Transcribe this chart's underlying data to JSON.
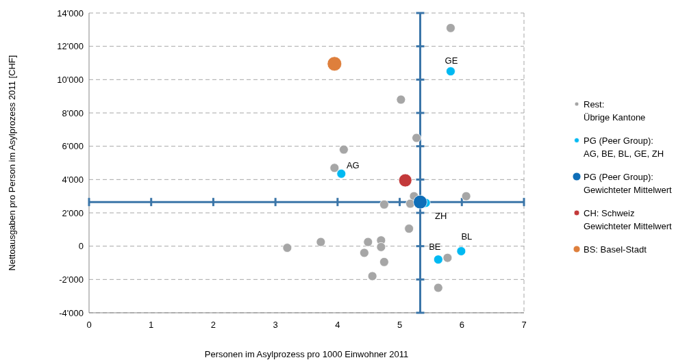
{
  "chart_data": {
    "type": "scatter",
    "xlabel": "Personen im Asylprozess pro 1000 Einwohner 2011",
    "ylabel": "Nettoausgaben pro Person im Asylprozess 2011 [CHF]",
    "xlim": [
      0,
      7
    ],
    "xticks": [
      0,
      1,
      2,
      3,
      4,
      5,
      6,
      7
    ],
    "ylim": [
      -4000,
      14000
    ],
    "yticks": [
      {
        "value": -4000,
        "label": "-4'000"
      },
      {
        "value": -2000,
        "label": "-2'000"
      },
      {
        "value": 0,
        "label": "0"
      },
      {
        "value": 2000,
        "label": "2'000"
      },
      {
        "value": 4000,
        "label": "4'000"
      },
      {
        "value": 6000,
        "label": "6'000"
      },
      {
        "value": 8000,
        "label": "8'000"
      },
      {
        "value": 10000,
        "label": "10'000"
      },
      {
        "value": 12000,
        "label": "12'000"
      },
      {
        "value": 14000,
        "label": "14'000"
      }
    ],
    "grid": "y",
    "legend": "right",
    "marker": "circle",
    "ref_lines": [
      {
        "axis": "x",
        "value": 5.33,
        "color": "#3a75a8"
      },
      {
        "axis": "y",
        "value": 2650,
        "color": "#3a75a8"
      }
    ],
    "series": [
      {
        "name": "Rest:\nÜbrige Kantone",
        "color": "#a6a6a6",
        "x": [
          5.82,
          5.02,
          5.27,
          4.1,
          3.95,
          5.23,
          4.75,
          5.17,
          6.07,
          5.15,
          3.19,
          3.73,
          4.49,
          4.7,
          4.7,
          4.43,
          4.75,
          4.56,
          5.77,
          5.62
        ],
        "values": [
          13100,
          8800,
          6500,
          5800,
          4700,
          3000,
          2500,
          2550,
          3000,
          1050,
          -100,
          250,
          250,
          350,
          -50,
          -400,
          -950,
          -1800,
          -700,
          -2500
        ]
      },
      {
        "name": "PG (Peer Group):\nAG, BE, BL, GE, ZH",
        "color": "#00b9f2",
        "x": [
          4.06,
          5.62,
          5.99,
          5.82,
          5.42
        ],
        "values": [
          4350,
          -800,
          -300,
          10500,
          2600
        ]
      },
      {
        "name": "PG (Peer Group):\nGewichteter Mittelwert",
        "color": "#0e6eb8",
        "x": [
          5.33
        ],
        "values": [
          2650
        ]
      },
      {
        "name": "CH: Schweiz\nGewichteter Mittelwert",
        "color": "#c3393a",
        "x": [
          5.09
        ],
        "values": [
          3950
        ]
      },
      {
        "name": "BS: Basel-Stadt",
        "color": "#de7f3c",
        "x": [
          3.95
        ],
        "values": [
          10950
        ]
      }
    ],
    "annotations": [
      {
        "text": "GE",
        "x": 5.82,
        "y": 10500
      },
      {
        "text": "AG",
        "x": 4.06,
        "y": 4350
      },
      {
        "text": "ZH",
        "x": 5.42,
        "y": 2600
      },
      {
        "text": "BE",
        "x": 5.62,
        "y": -800
      },
      {
        "text": "BL",
        "x": 5.99,
        "y": -300
      }
    ]
  }
}
